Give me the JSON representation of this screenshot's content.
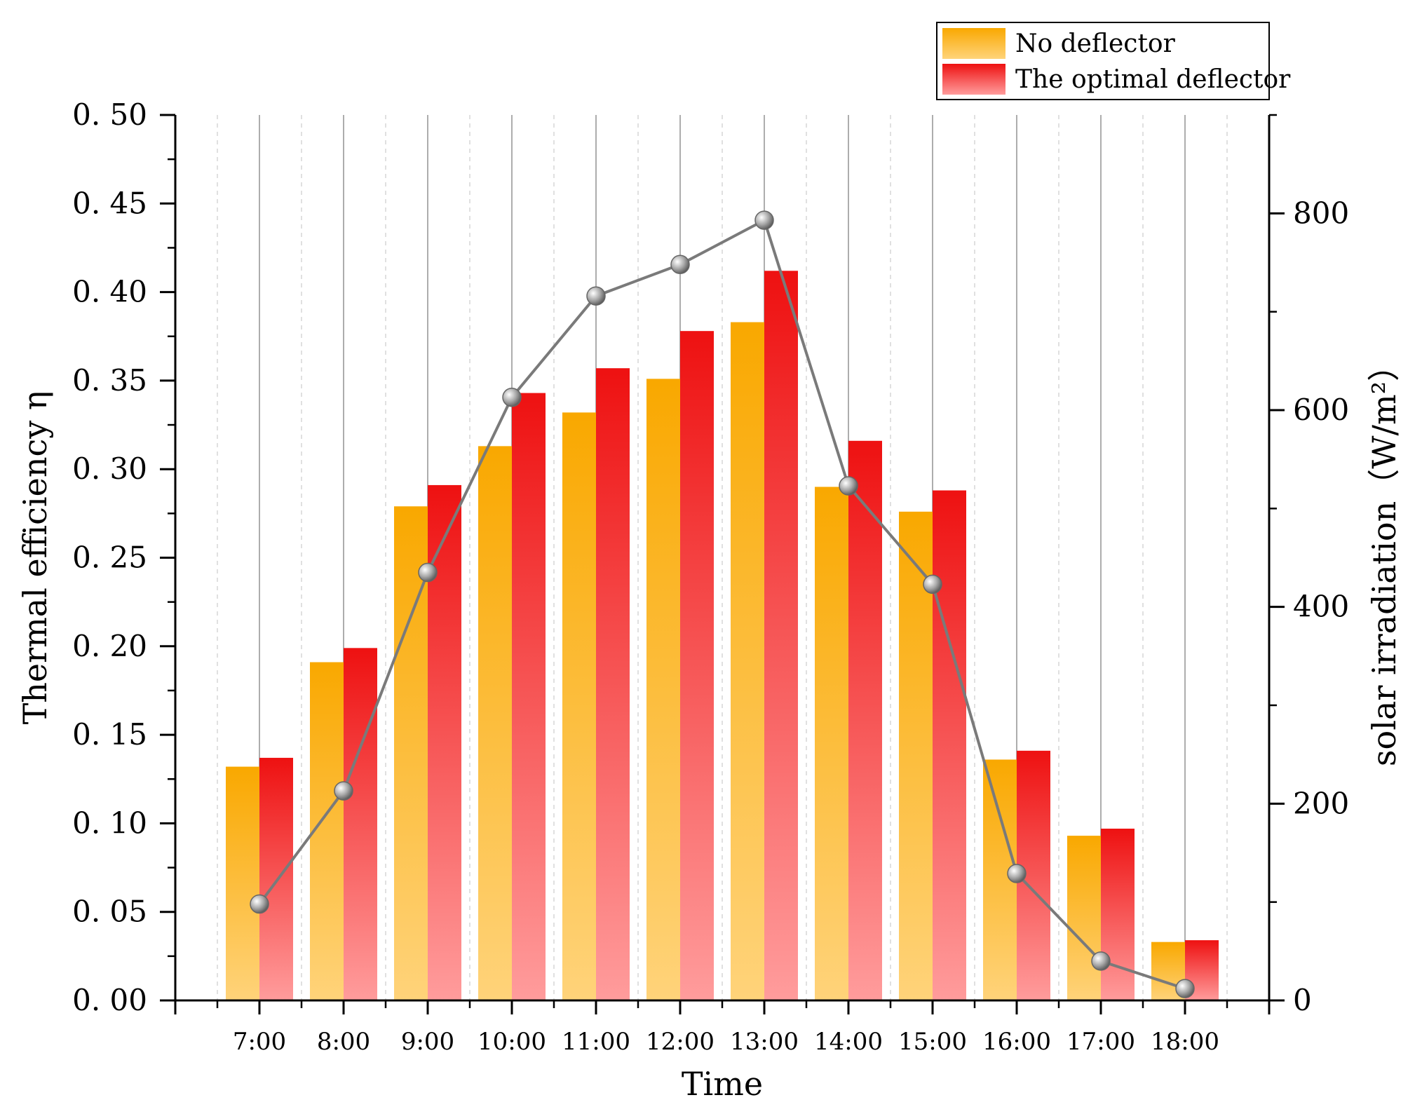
{
  "chart_data": {
    "type": "bar+line",
    "categories": [
      "7:00",
      "8:00",
      "9:00",
      "10:00",
      "11:00",
      "12:00",
      "13:00",
      "14:00",
      "15:00",
      "16:00",
      "17:00",
      "18:00"
    ],
    "series": [
      {
        "name": "No deflector",
        "type": "bar",
        "axis": "left",
        "values": [
          0.132,
          0.191,
          0.279,
          0.313,
          0.332,
          0.351,
          0.383,
          0.29,
          0.276,
          0.136,
          0.093,
          0.033
        ],
        "color_top": "#f9a800",
        "color_bottom": "#ffd37a"
      },
      {
        "name": "The optimal deflector",
        "type": "bar",
        "axis": "left",
        "values": [
          0.137,
          0.199,
          0.291,
          0.343,
          0.357,
          0.378,
          0.412,
          0.316,
          0.288,
          0.141,
          0.097,
          0.034
        ],
        "color_top": "#ee1111",
        "color_bottom": "#ff9c9c"
      },
      {
        "name": "solar irradiation",
        "type": "line",
        "axis": "right",
        "values": [
          98,
          213,
          435,
          613,
          716,
          748,
          793,
          523,
          423,
          129,
          40,
          12
        ],
        "color": "#7a7a7a"
      }
    ],
    "xlabel": "Time",
    "ylabel": "Thermal efficiency η",
    "y2label": "solar irradiation（W/m²）",
    "ylim": [
      0,
      0.5
    ],
    "y2lim": [
      0,
      900
    ],
    "yticks": [
      "0. 00",
      "0. 05",
      "0. 10",
      "0. 15",
      "0. 20",
      "0. 25",
      "0. 30",
      "0. 35",
      "0. 40",
      "0. 45",
      "0. 50"
    ],
    "y2ticks": [
      "0",
      "200",
      "400",
      "600",
      "800"
    ],
    "legend_position": "top-right",
    "grid": "vertical"
  }
}
